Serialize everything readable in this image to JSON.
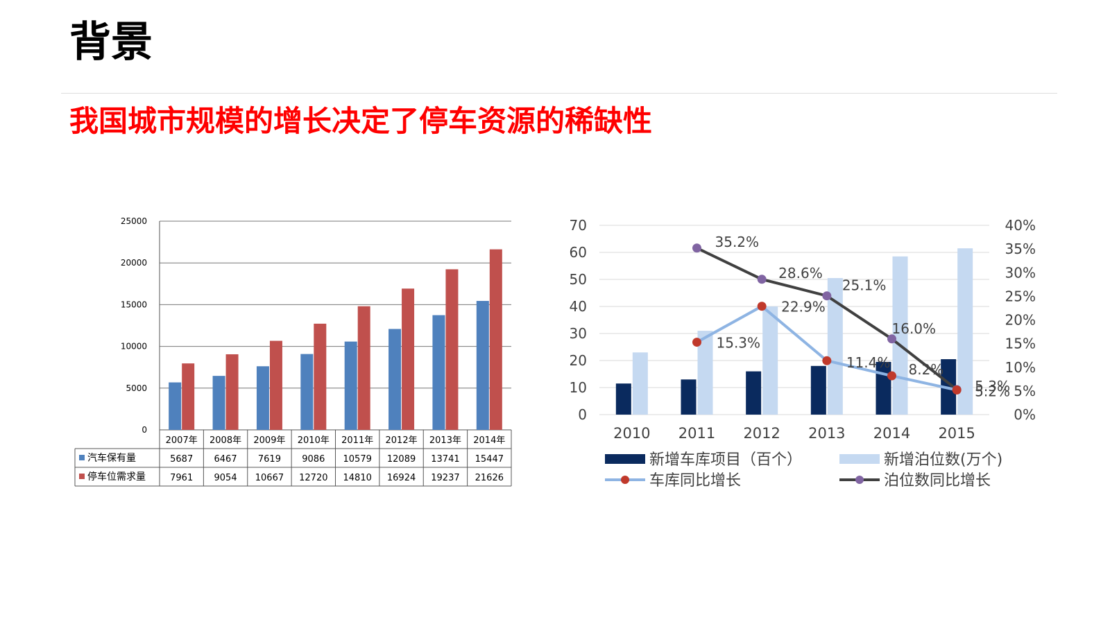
{
  "slide": {
    "title": "背景",
    "subtitle": "我国城市规模的增长决定了停车资源的稀缺性"
  },
  "chart_data": [
    {
      "type": "bar",
      "categories": [
        "2007年",
        "2008年",
        "2009年",
        "2010年",
        "2011年",
        "2012年",
        "2013年",
        "2014年"
      ],
      "series": [
        {
          "name": "汽车保有量",
          "color": "#4f81bd",
          "values": [
            5687,
            6467,
            7619,
            9086,
            10579,
            12089,
            13741,
            15447
          ]
        },
        {
          "name": "停车位需求量",
          "color": "#c0504d",
          "values": [
            7961,
            9054,
            10667,
            12720,
            14810,
            16924,
            19237,
            21626
          ]
        }
      ],
      "ylim": [
        0,
        25000
      ],
      "yticks": [
        0,
        5000,
        10000,
        15000,
        20000,
        25000
      ],
      "grid": true,
      "data_table": true
    },
    {
      "type": "bar",
      "categories": [
        "2010",
        "2011",
        "2012",
        "2013",
        "2014",
        "2015"
      ],
      "series": [
        {
          "name": "新增车库项目（百个）",
          "kind": "bar",
          "axis": "left",
          "color": "#0a2a5e",
          "values": [
            11.5,
            13,
            16,
            18,
            19.5,
            20.5
          ]
        },
        {
          "name": "新增泊位数(万个)",
          "kind": "bar",
          "axis": "left",
          "color": "#c5d9f1",
          "values": [
            23,
            31,
            40,
            50.5,
            58.5,
            61.5
          ]
        },
        {
          "name": "车库同比增长",
          "kind": "line",
          "axis": "right",
          "color": "#8eb4e3",
          "marker_color": "#c0392b",
          "x": [
            "2011",
            "2012",
            "2013",
            "2014",
            "2015"
          ],
          "values": [
            15.3,
            22.9,
            11.4,
            8.2,
            5.2
          ],
          "labels": [
            "15.3%",
            "22.9%",
            "11.4%",
            "8.2%",
            "5.2%"
          ]
        },
        {
          "name": "泊位数同比增长",
          "kind": "line",
          "axis": "right",
          "color": "#404040",
          "marker_color": "#8064a2",
          "x": [
            "2011",
            "2012",
            "2013",
            "2014",
            "2015"
          ],
          "values": [
            35.2,
            28.6,
            25.1,
            16.0,
            5.3
          ],
          "labels": [
            "35.2%",
            "28.6%",
            "25.1%",
            "16.0%",
            "5.3%"
          ]
        }
      ],
      "ylim": [
        0,
        70
      ],
      "yticks": [
        "0",
        "10",
        "20",
        "30",
        "40",
        "50",
        "60",
        "70"
      ],
      "y2lim": [
        0,
        40
      ],
      "y2ticks": [
        "0%",
        "5%",
        "10%",
        "15%",
        "20%",
        "25%",
        "30%",
        "35%",
        "40%"
      ],
      "grid": true,
      "legend": "bottom"
    }
  ]
}
